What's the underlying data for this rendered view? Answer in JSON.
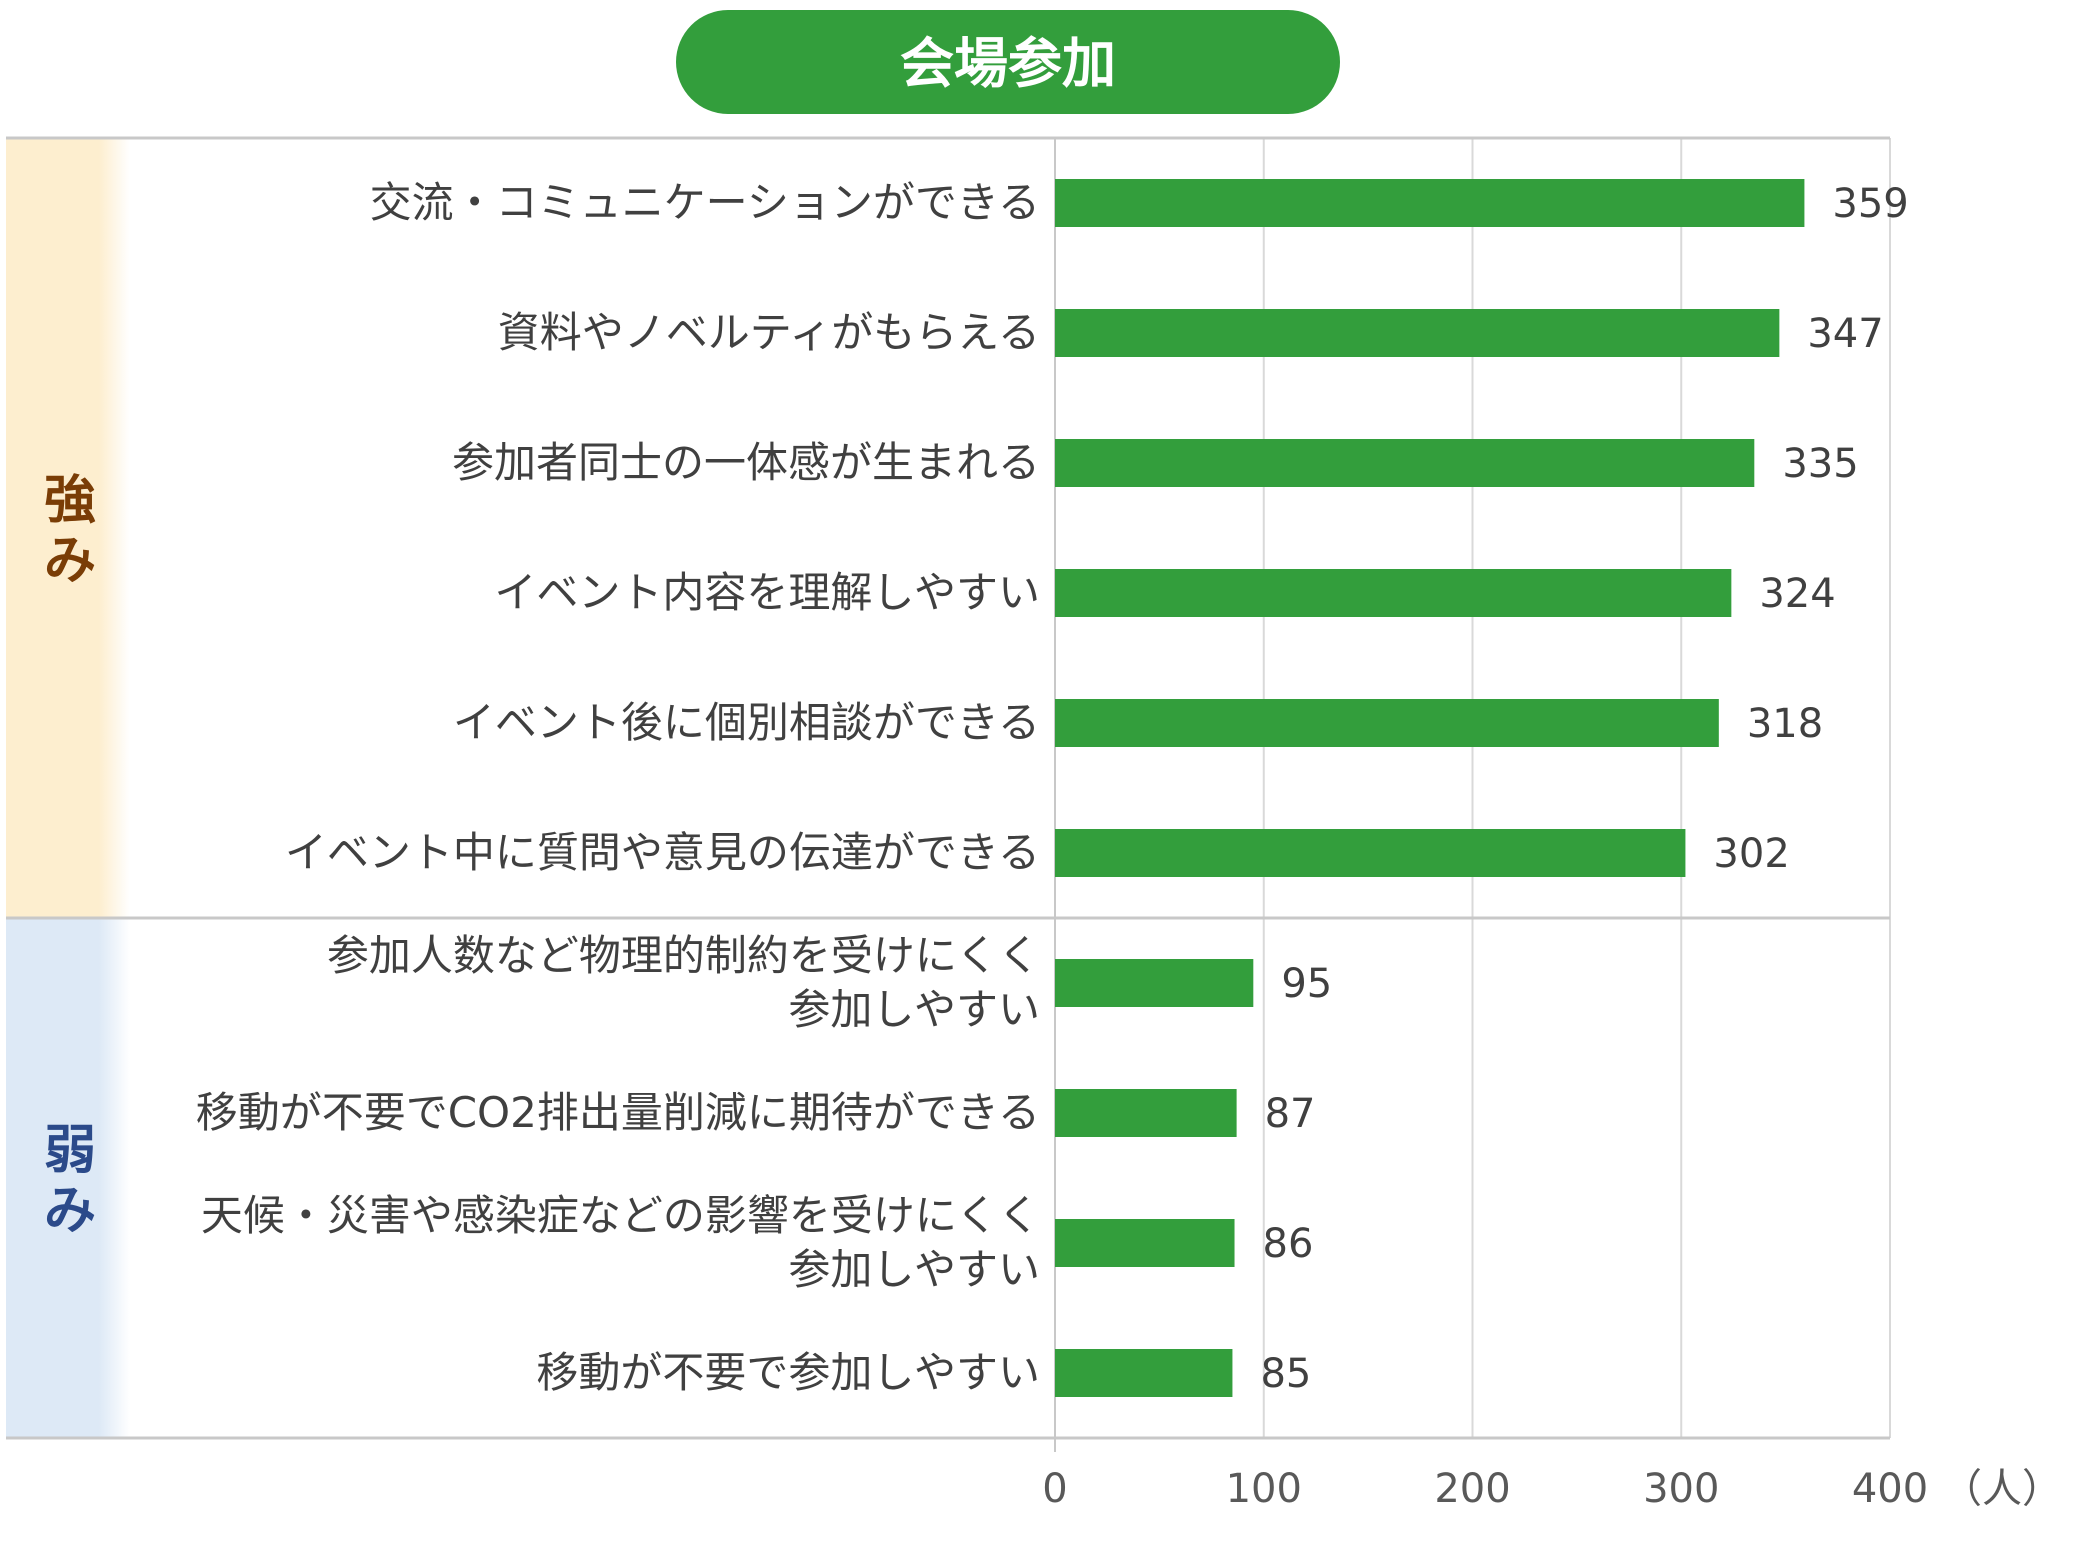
{
  "chart_data": {
    "type": "bar",
    "orientation": "horizontal",
    "title": "会場参加",
    "title_color": "#339e3c",
    "bar_color": "#339e3c",
    "unit_label": "（人）",
    "xlim": [
      0,
      400
    ],
    "x_ticks": [
      0,
      100,
      200,
      300,
      400
    ],
    "grid": true,
    "groups": [
      {
        "label": "強み",
        "label_color": "#7a3d06",
        "band_color": "#fdeecf",
        "count": 6
      },
      {
        "label": "弱み",
        "label_color": "#2b4a8a",
        "band_color": "#dde9f6",
        "count": 4
      }
    ],
    "categories": [
      [
        "交流・コミュニケーションができる"
      ],
      [
        "資料やノベルティがもらえる"
      ],
      [
        "参加者同士の一体感が生まれる"
      ],
      [
        "イベント内容を理解しやすい"
      ],
      [
        "イベント後に個別相談ができる"
      ],
      [
        "イベント中に質問や意見の伝達ができる"
      ],
      [
        "参加人数など物理的制約を受けにくく",
        "参加しやすい"
      ],
      [
        "移動が不要でCO2排出量削減に期待ができる"
      ],
      [
        "天候・災害や感染症などの影響を受けにくく",
        "参加しやすい"
      ],
      [
        "移動が不要で参加しやすい"
      ]
    ],
    "values": [
      359,
      347,
      335,
      324,
      318,
      302,
      95,
      87,
      86,
      85
    ]
  }
}
